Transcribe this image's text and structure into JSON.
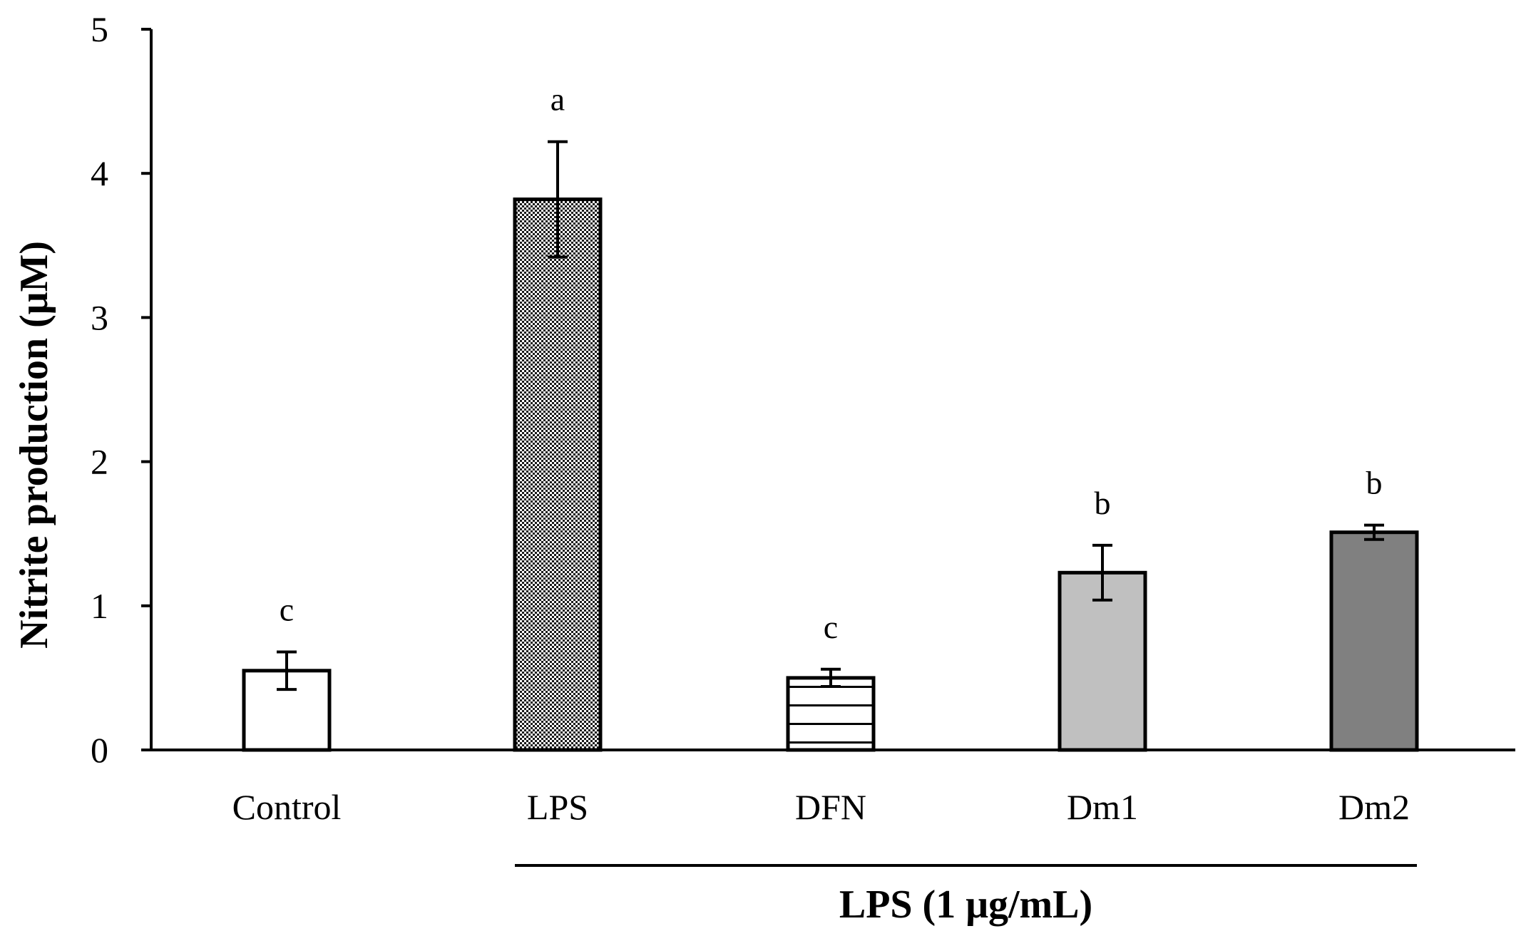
{
  "chart_data": {
    "type": "bar",
    "title": "",
    "xlabel": "",
    "ylabel": "Nitrite production (μM)",
    "ylim": [
      0,
      5
    ],
    "yticks": [
      0,
      1,
      2,
      3,
      4,
      5
    ],
    "categories": [
      "Control",
      "LPS",
      "DFN",
      "Dm1",
      "Dm2"
    ],
    "values": [
      0.55,
      3.82,
      0.5,
      1.23,
      1.51
    ],
    "errors": [
      0.13,
      0.4,
      0.06,
      0.19,
      0.05
    ],
    "significance": [
      "c",
      "a",
      "c",
      "b",
      "b"
    ],
    "fills": [
      "white",
      "dense-checker",
      "horizontal-stripes",
      "#c0c0c0",
      "#808080"
    ],
    "group": {
      "label": "LPS (1 μg/mL)",
      "from": "LPS",
      "to": "Dm2"
    },
    "grid": false,
    "legend": "none"
  }
}
